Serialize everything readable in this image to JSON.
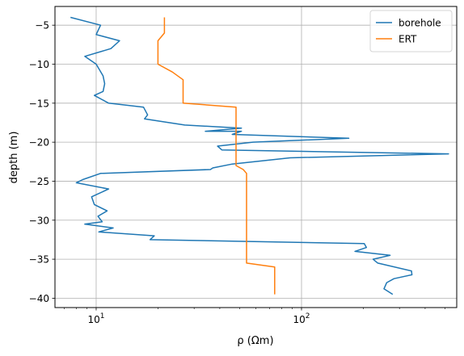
{
  "chart_data": {
    "type": "line",
    "title": "",
    "xlabel": "ρ (Ωm)",
    "ylabel": "depth (m)",
    "xscale": "log",
    "xlim": [
      6.3,
      570
    ],
    "ylim": [
      -41.2,
      -2.6
    ],
    "x_ticks": [
      {
        "value": 10,
        "label": "10^1"
      },
      {
        "value": 100,
        "label": "10^2"
      }
    ],
    "y_ticks": [
      -5,
      -10,
      -15,
      -20,
      -25,
      -30,
      -35,
      -40
    ],
    "y_tick_labels": [
      "−5",
      "−10",
      "−15",
      "−20",
      "−25",
      "−30",
      "−35",
      "−40"
    ],
    "grid": true,
    "legend": {
      "position": "top-right"
    },
    "series": [
      {
        "name": "borehole",
        "color": "#1f77b4",
        "points": [
          [
            7.5,
            -4.0
          ],
          [
            10.5,
            -5.0
          ],
          [
            10.0,
            -6.2
          ],
          [
            13.0,
            -7.0
          ],
          [
            11.8,
            -8.0
          ],
          [
            8.8,
            -9.0
          ],
          [
            10.0,
            -10.0
          ],
          [
            10.8,
            -11.5
          ],
          [
            11.0,
            -12.5
          ],
          [
            10.8,
            -13.5
          ],
          [
            9.8,
            -14.0
          ],
          [
            11.5,
            -15.0
          ],
          [
            17.0,
            -15.5
          ],
          [
            17.8,
            -16.5
          ],
          [
            17.2,
            -17.0
          ],
          [
            27.0,
            -17.8
          ],
          [
            51.0,
            -18.2
          ],
          [
            34.0,
            -18.6
          ],
          [
            51.0,
            -18.6
          ],
          [
            46.0,
            -19.0
          ],
          [
            170.0,
            -19.5
          ],
          [
            58.0,
            -20.0
          ],
          [
            39.0,
            -20.5
          ],
          [
            41.0,
            -21.0
          ],
          [
            520.0,
            -21.5
          ],
          [
            88.0,
            -22.0
          ],
          [
            46.0,
            -22.8
          ],
          [
            37.0,
            -23.3
          ],
          [
            36.0,
            -23.5
          ],
          [
            10.5,
            -24.0
          ],
          [
            8.6,
            -24.8
          ],
          [
            8.0,
            -25.2
          ],
          [
            11.5,
            -26.0
          ],
          [
            9.5,
            -27.0
          ],
          [
            9.8,
            -28.0
          ],
          [
            11.3,
            -28.8
          ],
          [
            10.2,
            -29.5
          ],
          [
            10.7,
            -30.2
          ],
          [
            8.8,
            -30.5
          ],
          [
            12.1,
            -31.0
          ],
          [
            10.3,
            -31.5
          ],
          [
            19.2,
            -32.0
          ],
          [
            18.3,
            -32.5
          ],
          [
            202.0,
            -33.0
          ],
          [
            207.0,
            -33.5
          ],
          [
            182.0,
            -34.0
          ],
          [
            270.0,
            -34.5
          ],
          [
            223.0,
            -35.0
          ],
          [
            235.0,
            -35.5
          ],
          [
            343.0,
            -36.5
          ],
          [
            345.0,
            -37.0
          ],
          [
            282.0,
            -37.5
          ],
          [
            260.0,
            -38.0
          ],
          [
            252.0,
            -38.8
          ],
          [
            278.0,
            -39.5
          ]
        ]
      },
      {
        "name": "ERT",
        "color": "#ff7f0e",
        "points": [
          [
            21.5,
            -4.0
          ],
          [
            21.5,
            -6.0
          ],
          [
            20.0,
            -7.0
          ],
          [
            20.0,
            -10.0
          ],
          [
            23.5,
            -11.0
          ],
          [
            26.5,
            -12.0
          ],
          [
            26.5,
            -15.0
          ],
          [
            48.0,
            -15.5
          ],
          [
            48.0,
            -23.0
          ],
          [
            52.0,
            -23.5
          ],
          [
            54.0,
            -24.0
          ],
          [
            54.0,
            -35.5
          ],
          [
            74.0,
            -36.0
          ],
          [
            74.0,
            -39.5
          ]
        ]
      }
    ]
  }
}
